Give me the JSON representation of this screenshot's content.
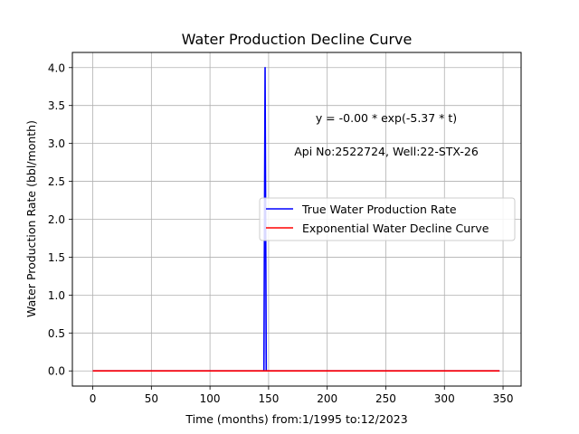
{
  "chart_data": {
    "type": "line",
    "title": "Water Production Decline Curve",
    "xlabel": "Time (months) from:1/1995 to:12/2023",
    "ylabel": "Water Production Rate (bbl/month)",
    "xlim": [
      -17.4,
      365.4
    ],
    "ylim": [
      -0.2,
      4.2
    ],
    "xticks": [
      0,
      50,
      100,
      150,
      200,
      250,
      300,
      350
    ],
    "yticks": [
      0.0,
      0.5,
      1.0,
      1.5,
      2.0,
      2.5,
      3.0,
      3.5,
      4.0
    ],
    "xtick_labels": [
      "0",
      "50",
      "100",
      "150",
      "200",
      "250",
      "300",
      "350"
    ],
    "ytick_labels": [
      "0.0",
      "0.5",
      "1.0",
      "1.5",
      "2.0",
      "2.5",
      "3.0",
      "3.5",
      "4.0"
    ],
    "grid": true,
    "legend_placement": "center-right",
    "series": [
      {
        "name": "True Water Production Rate",
        "color": "#0000ff",
        "x": [
          0,
          146,
          147,
          148,
          347
        ],
        "y": [
          0,
          0,
          4,
          0,
          0
        ]
      },
      {
        "name": "Exponential Water Decline Curve",
        "color": "#ff0000",
        "x": [
          0,
          347
        ],
        "y": [
          0,
          0
        ]
      }
    ],
    "annotations": [
      "y = -0.00 * exp(-5.37 * t)",
      "Api No:2522724, Well:22-STX-26"
    ]
  }
}
